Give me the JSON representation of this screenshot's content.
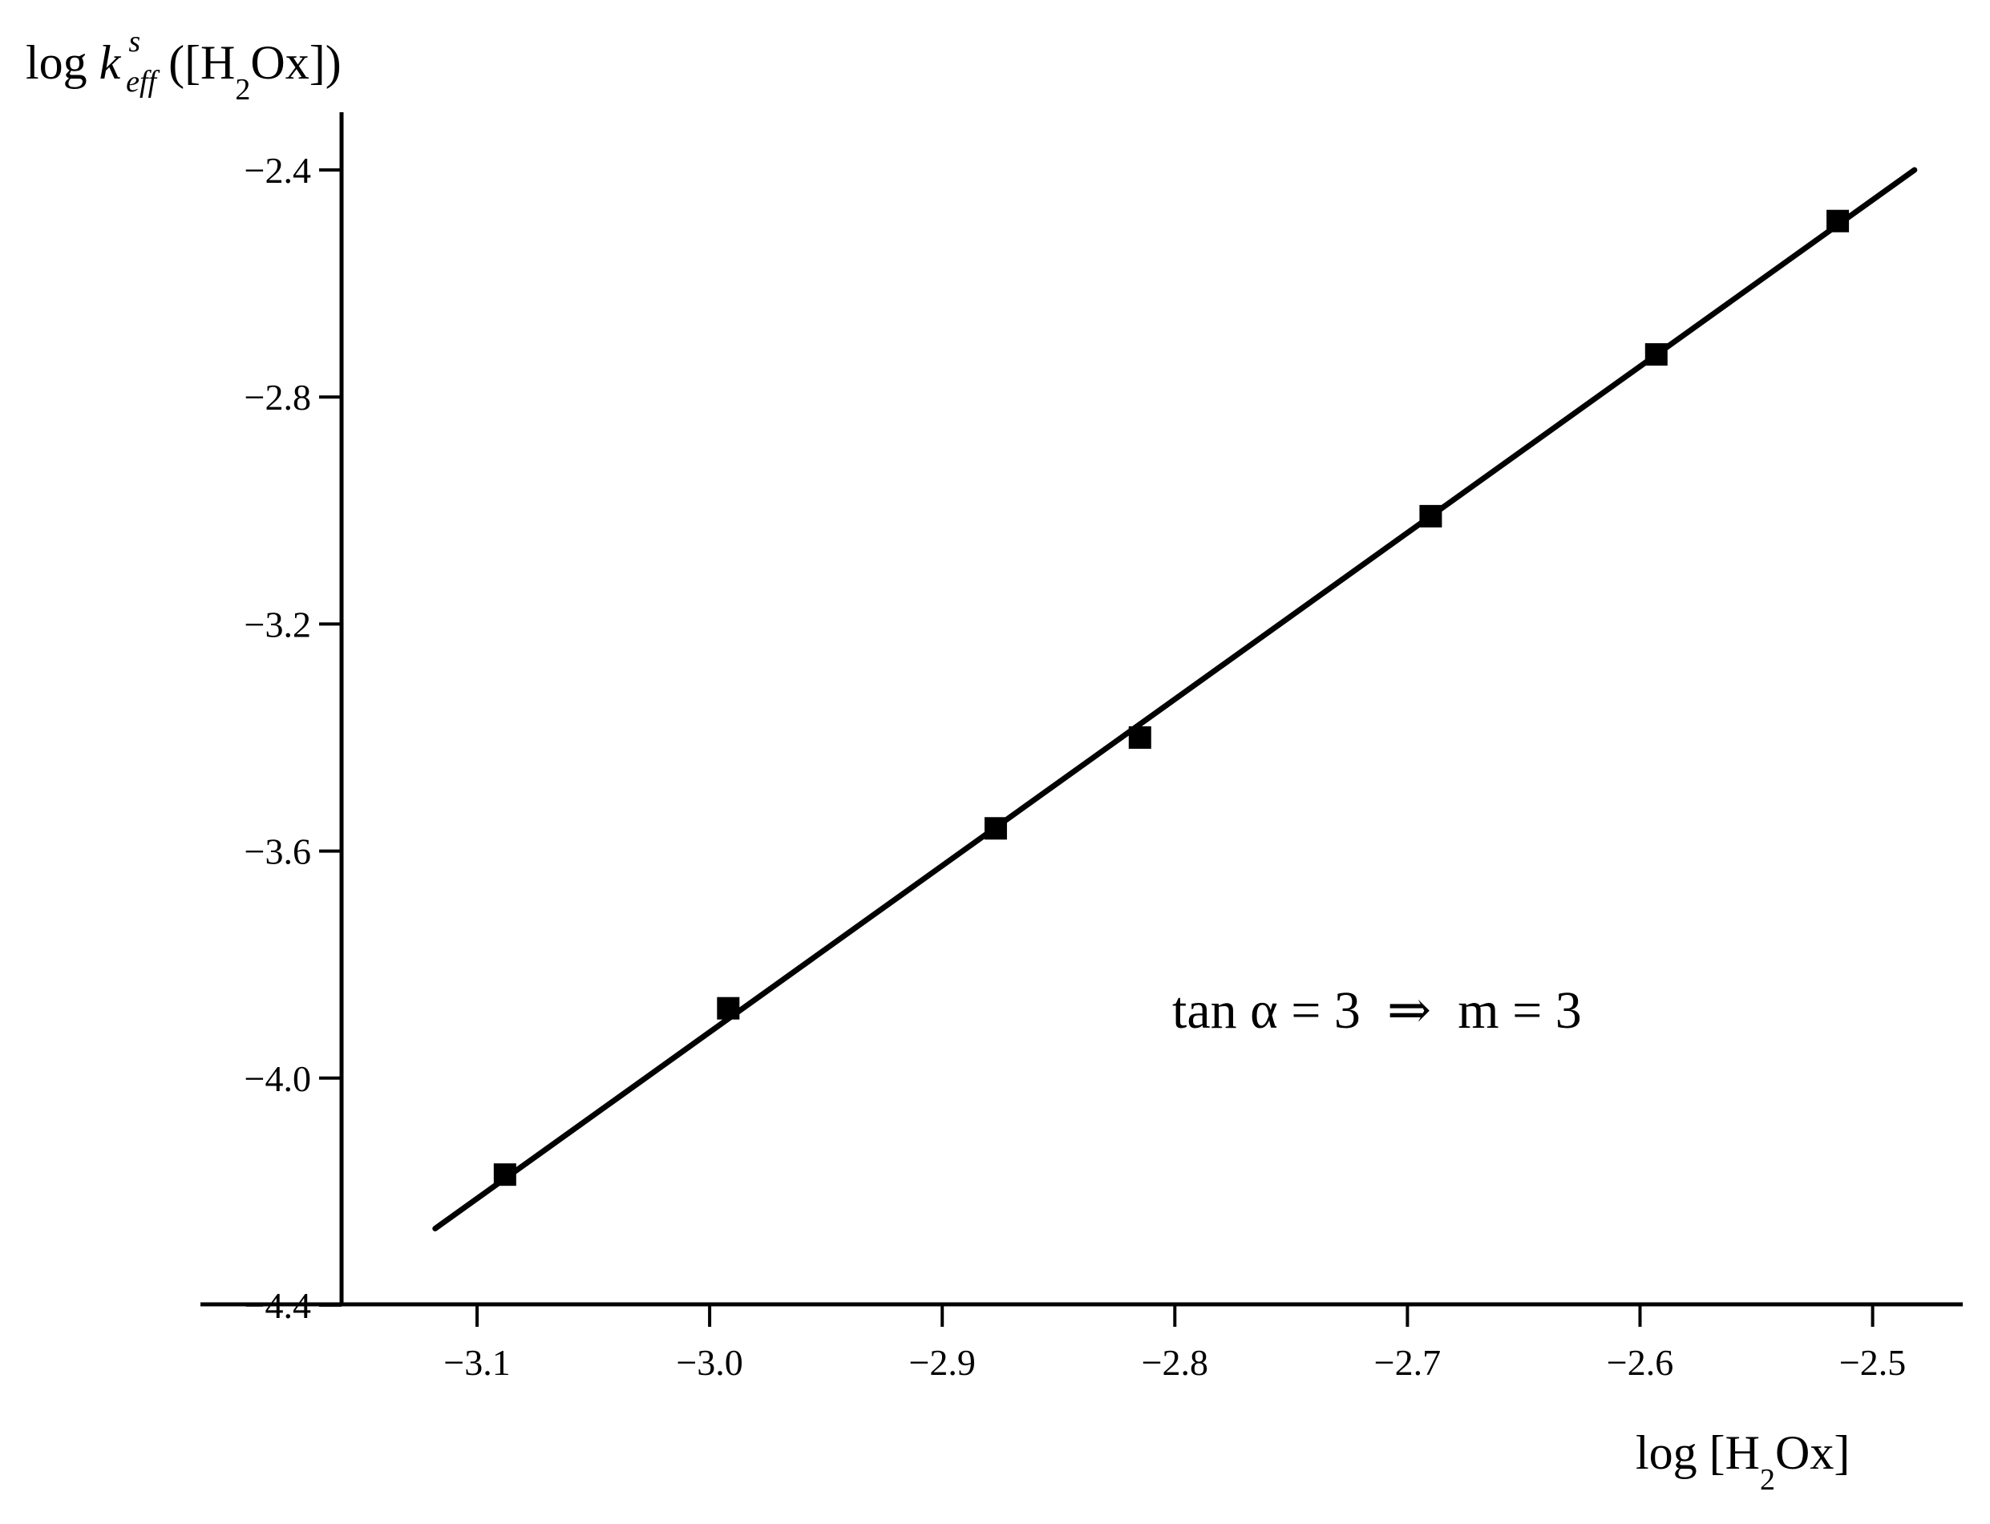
{
  "chart_data": {
    "type": "scatter",
    "title": "",
    "ylabel": {
      "prefix": "log ",
      "k": "k",
      "sup": "s",
      "sub": "eff",
      "open": " ([H",
      "h2": "2",
      "close": "Ox])"
    },
    "xlabel": {
      "open": "log [H",
      "h2": "2",
      "close": "Ox]"
    },
    "xlim": [
      -3.15,
      -2.47
    ],
    "ylim": [
      -4.4,
      -2.3
    ],
    "xticks": [
      -3.1,
      -3.0,
      -2.9,
      -2.8,
      -2.7,
      -2.6,
      -2.5
    ],
    "xtick_labels": [
      "−3.1",
      "−3.0",
      "−2.9",
      "−2.8",
      "−2.7",
      "−2.6",
      "−2.5"
    ],
    "yticks": [
      -2.4,
      -2.8,
      -3.2,
      -3.6,
      -4.0,
      -4.4
    ],
    "ytick_labels": [
      "−2.4",
      "−2.8",
      "−3.2",
      "−3.6",
      "−4.0",
      "−4.4"
    ],
    "points": {
      "x": [
        -3.088,
        -2.992,
        -2.877,
        -2.815,
        -2.69,
        -2.593,
        -2.515
      ],
      "y": [
        -4.17,
        -3.877,
        -3.56,
        -3.4,
        -3.01,
        -2.725,
        -2.49
      ]
    },
    "fit_line": {
      "x": [
        -3.118,
        -2.482
      ],
      "y": [
        -4.265,
        -2.4
      ]
    },
    "annotation": "tan α = 3  ⇒  m = 3",
    "grid": false,
    "marker": "filled-square",
    "line_color": "#000000",
    "marker_color": "#000000"
  }
}
